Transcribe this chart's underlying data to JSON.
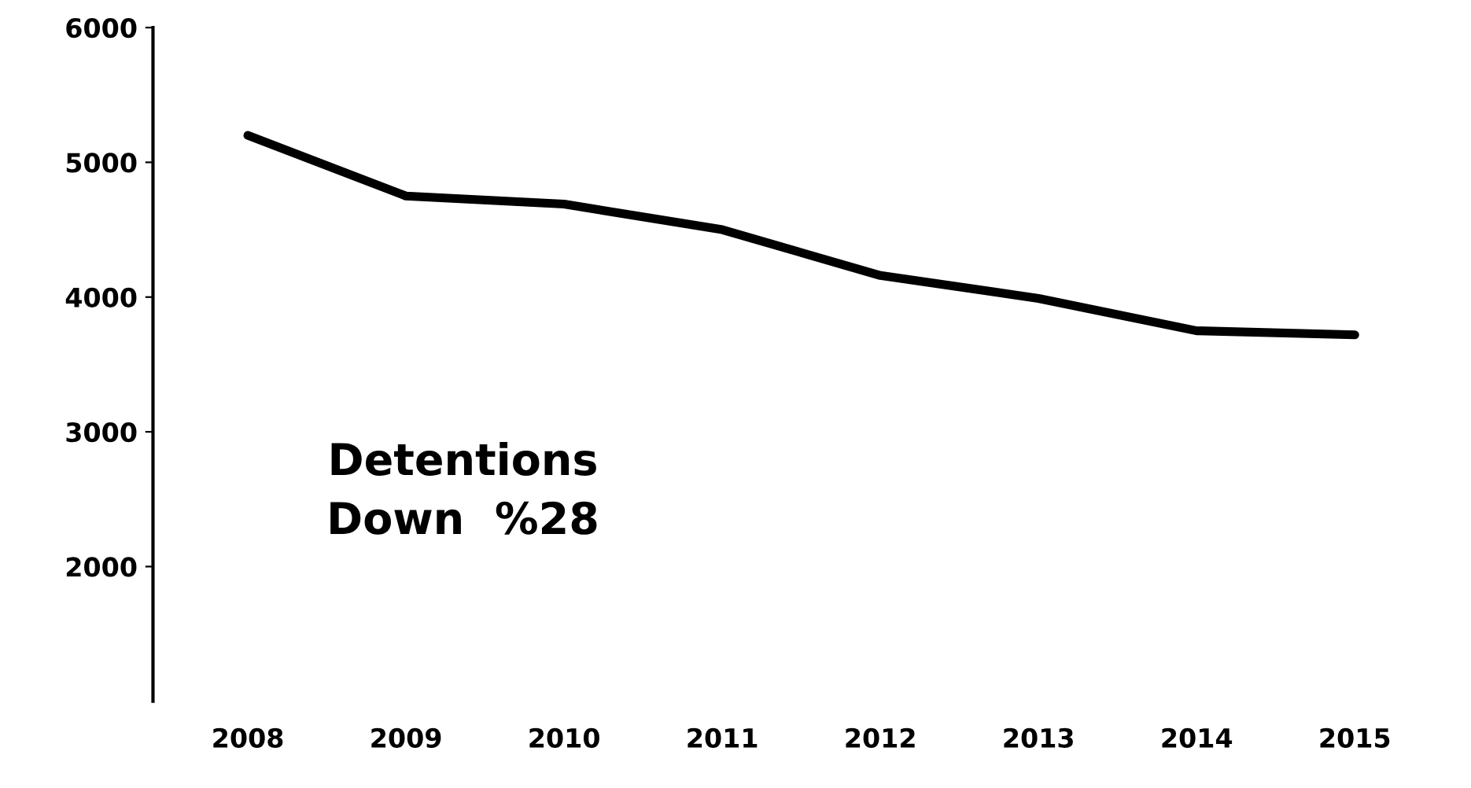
{
  "chart_data": {
    "type": "line",
    "categories": [
      "2008",
      "2009",
      "2010",
      "2011",
      "2012",
      "2013",
      "2014",
      "2015"
    ],
    "series": [
      {
        "color": "#000000",
        "values": [
          5200,
          4750,
          4690,
          4500,
          4160,
          3990,
          3750,
          3720
        ]
      }
    ],
    "ylim": [
      1000,
      6000
    ],
    "yticks": [
      2000,
      3000,
      4000,
      5000,
      6000
    ],
    "grid": false,
    "legend": false,
    "marker": "none",
    "line_style": "solid",
    "annotations": [
      "Detentions\nDown  %28"
    ]
  }
}
